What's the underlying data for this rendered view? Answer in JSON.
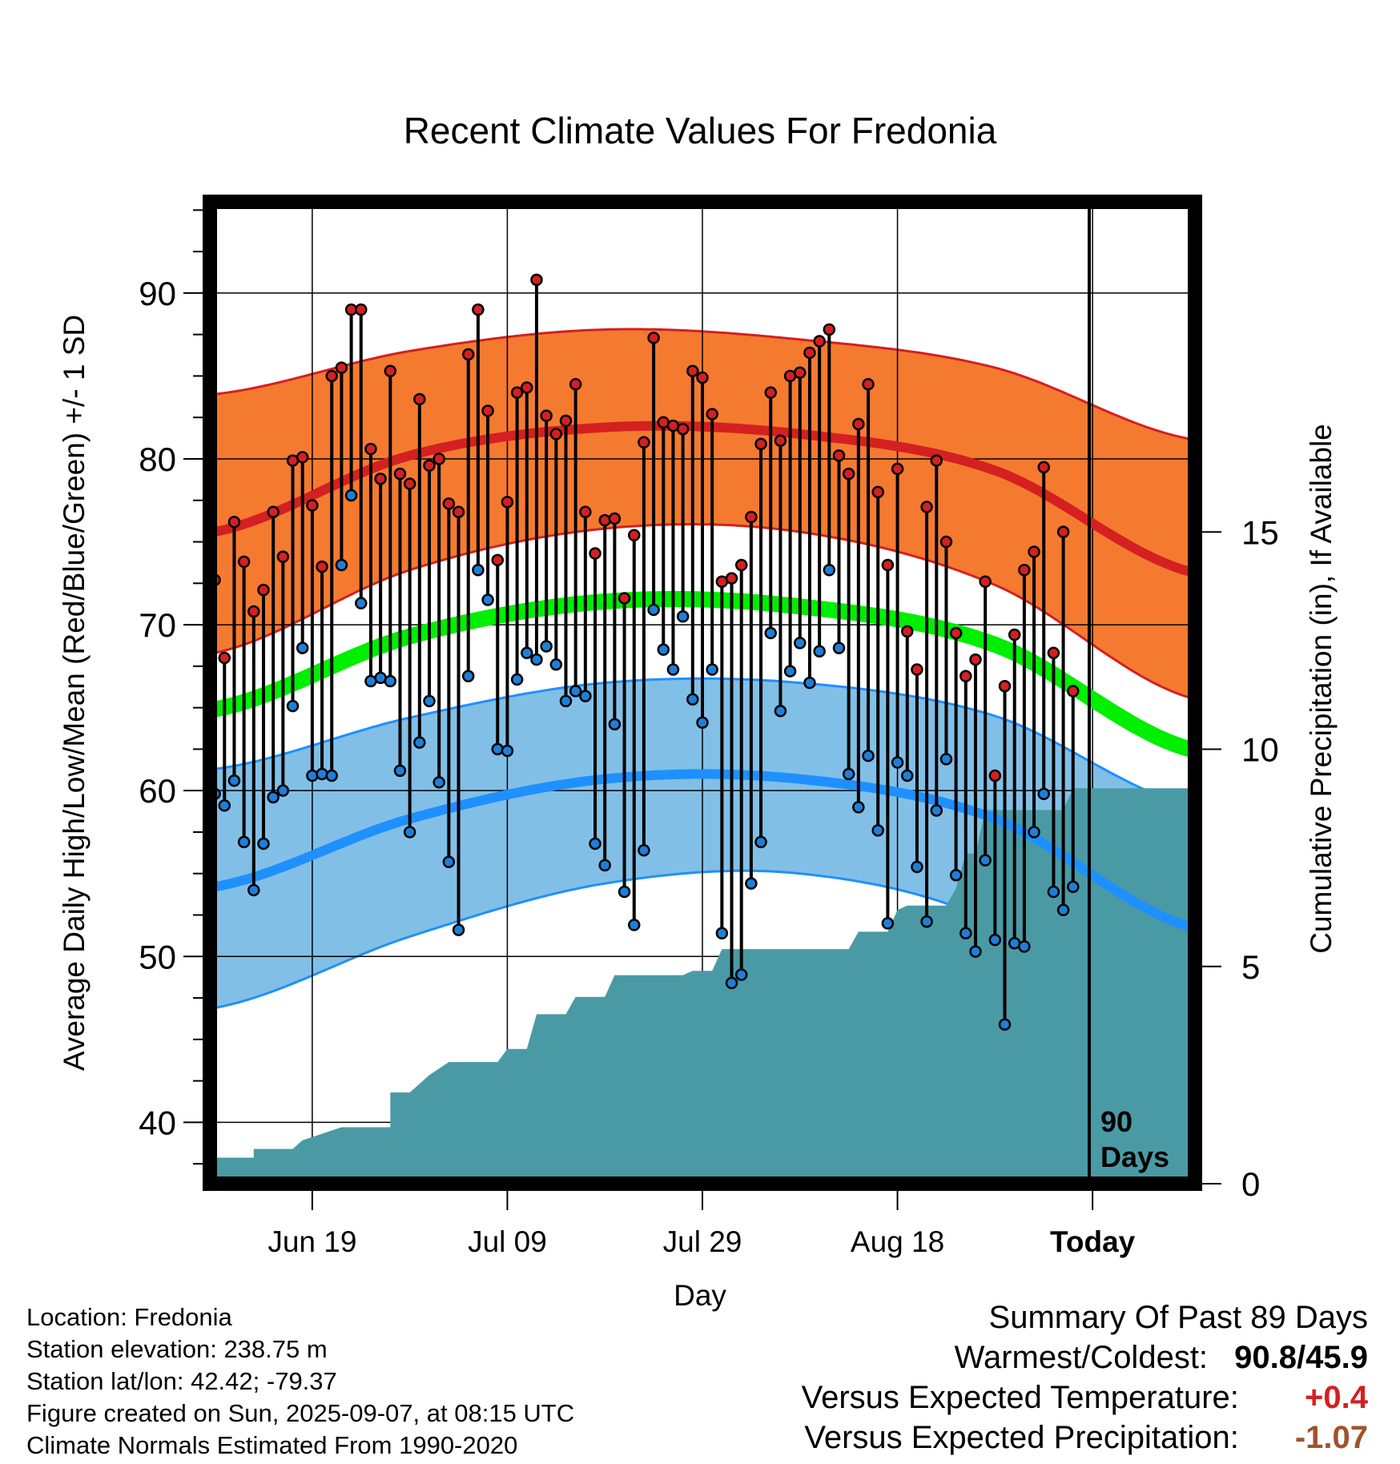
{
  "title": "Recent Climate Values For Fredonia",
  "y_left_label": "Average Daily High/Low/Mean (Red/Blue/Green) +/- 1 SD",
  "y_right_label": "Cumulative Precipitation (in), If Available",
  "x_label": "Day",
  "x_ticks": [
    "Jun 19",
    "Jul 09",
    "Jul 29",
    "Aug 18",
    "Today"
  ],
  "y_left_ticks": [
    "40",
    "50",
    "60",
    "70",
    "80",
    "90"
  ],
  "y_right_ticks": [
    "0",
    "5",
    "10",
    "15"
  ],
  "today_label_line1": "90",
  "today_label_line2": "Days",
  "info": {
    "location": "Location: Fredonia",
    "elevation": "Station elevation: 238.75 m",
    "latlon": "Station lat/lon: 42.42; -79.37",
    "created": "Figure created on Sun, 2025-09-07, at 08:15 UTC",
    "normals": "Climate Normals Estimated From 1990-2020"
  },
  "summary": {
    "heading": "Summary Of Past 89 Days",
    "warm_cold_label": "Warmest/Coldest:",
    "warm_cold_value": "90.8/45.9",
    "temp_label": "Versus Expected Temperature:",
    "temp_value": "+0.4",
    "precip_label": "Versus Expected Precipitation:",
    "precip_value": "-1.07"
  },
  "colors": {
    "high_band": "#f47a30",
    "high_line": "#d42020",
    "low_band": "#82bfe6",
    "low_line": "#1e90ff",
    "mean_line": "#00ee00",
    "precip": "#4a9aa5",
    "high_dot": "#d42020",
    "low_dot": "#1e7fd8",
    "temp_anomaly": "#d42020",
    "precip_anomaly": "#a0522d"
  },
  "chart_data": {
    "type": "line",
    "x_tick_days": [
      10,
      30,
      50,
      70,
      90
    ],
    "xlim": [
      -0.5,
      100.5
    ],
    "ylim": [
      36.3,
      95.5
    ],
    "y2lim": [
      0,
      22.6
    ],
    "today_day": 90,
    "normals": {
      "x": [
        0,
        20,
        40,
        60,
        80,
        100
      ],
      "high_mean": [
        75.6,
        80.2,
        81.9,
        81.5,
        79.3,
        73.2
      ],
      "high_upper": [
        83.9,
        86.5,
        87.8,
        87.2,
        85.5,
        81.2
      ],
      "high_lower": [
        68.3,
        73.3,
        75.8,
        75.6,
        72.4,
        65.6
      ],
      "low_mean": [
        54.2,
        58.3,
        60.7,
        60.7,
        58.3,
        51.8
      ],
      "low_upper": [
        61.3,
        64.4,
        66.5,
        66.5,
        64.5,
        59.1
      ],
      "low_lower": [
        46.9,
        51.2,
        54.4,
        55.0,
        52.0,
        43.9
      ],
      "mean": [
        64.9,
        69.3,
        71.4,
        71.1,
        68.8,
        62.5
      ]
    },
    "daily": {
      "day": [
        0,
        1,
        2,
        3,
        4,
        5,
        6,
        7,
        8,
        9,
        10,
        11,
        12,
        13,
        14,
        15,
        16,
        17,
        18,
        19,
        20,
        21,
        22,
        23,
        24,
        25,
        26,
        27,
        28,
        29,
        30,
        31,
        32,
        33,
        34,
        35,
        36,
        37,
        38,
        39,
        40,
        41,
        42,
        43,
        44,
        45,
        46,
        47,
        48,
        49,
        50,
        51,
        52,
        53,
        54,
        55,
        56,
        57,
        58,
        59,
        60,
        61,
        62,
        63,
        64,
        65,
        66,
        67,
        68,
        69,
        70,
        71,
        72,
        73,
        74,
        75,
        76,
        77,
        78,
        79,
        80,
        81,
        82,
        83,
        84,
        85,
        86,
        87,
        88,
        89
      ],
      "high": [
        72.7,
        68.0,
        76.2,
        73.8,
        70.8,
        72.1,
        76.8,
        74.1,
        79.9,
        80.1,
        77.2,
        73.5,
        85.0,
        85.5,
        89.0,
        89.0,
        80.6,
        78.8,
        85.3,
        79.1,
        78.5,
        83.6,
        79.6,
        80.0,
        77.3,
        76.8,
        86.3,
        89.0,
        82.9,
        73.9,
        77.4,
        84.0,
        84.3,
        90.8,
        82.6,
        81.5,
        82.3,
        84.5,
        76.8,
        74.3,
        76.3,
        76.4,
        71.6,
        75.4,
        81.0,
        87.3,
        82.2,
        82.0,
        81.8,
        85.3,
        84.9,
        82.7,
        72.6,
        72.8,
        73.6,
        76.5,
        80.9,
        84.0,
        81.1,
        85.0,
        85.2,
        86.4,
        87.1,
        87.8,
        80.2,
        79.1,
        82.1,
        84.5,
        78.0,
        73.6,
        79.4,
        69.6,
        67.3,
        77.1,
        79.9,
        75.0,
        69.5,
        66.9,
        67.9,
        72.6,
        60.9,
        66.3,
        69.4,
        73.3,
        74.4,
        79.5,
        68.3,
        75.6,
        66.0,
        0
      ],
      "low": [
        59.8,
        59.1,
        60.6,
        56.9,
        54.0,
        56.8,
        59.6,
        60.0,
        65.1,
        68.6,
        60.9,
        61.0,
        60.9,
        73.6,
        77.8,
        71.3,
        66.6,
        66.8,
        66.6,
        61.2,
        57.5,
        62.9,
        65.4,
        60.5,
        55.7,
        51.6,
        66.9,
        73.3,
        71.5,
        62.5,
        62.4,
        66.7,
        68.3,
        67.9,
        68.7,
        67.6,
        65.4,
        66.0,
        65.7,
        56.8,
        55.5,
        64.0,
        53.9,
        51.9,
        56.4,
        70.9,
        68.5,
        67.3,
        70.5,
        65.5,
        64.1,
        67.3,
        51.4,
        48.4,
        48.9,
        54.4,
        56.9,
        69.5,
        64.8,
        67.2,
        68.9,
        66.5,
        68.4,
        73.3,
        68.6,
        61.0,
        59.0,
        62.1,
        57.6,
        52.0,
        61.7,
        60.9,
        55.4,
        52.1,
        58.8,
        61.9,
        54.9,
        51.4,
        50.3,
        55.8,
        51.0,
        45.9,
        50.8,
        50.6,
        57.5,
        59.8,
        53.9,
        52.8,
        54.2,
        0
      ]
    },
    "precip": {
      "x": [
        0,
        4,
        4,
        8,
        9,
        13,
        18,
        18,
        20,
        22,
        24,
        29,
        30,
        32,
        33,
        36,
        37,
        40,
        41,
        48,
        49,
        51,
        52,
        65,
        66,
        69,
        70,
        71,
        75,
        76,
        77,
        78,
        79,
        87,
        88,
        100
      ],
      "values": [
        0.6,
        0.6,
        0.8,
        0.8,
        1.0,
        1.3,
        1.3,
        2.1,
        2.1,
        2.5,
        2.8,
        2.8,
        3.1,
        3.1,
        3.9,
        3.9,
        4.3,
        4.3,
        4.8,
        4.8,
        4.9,
        4.9,
        5.4,
        5.4,
        5.8,
        5.8,
        6.3,
        6.4,
        6.4,
        6.8,
        7.6,
        7.6,
        8.6,
        8.6,
        9.1,
        9.1
      ]
    }
  }
}
